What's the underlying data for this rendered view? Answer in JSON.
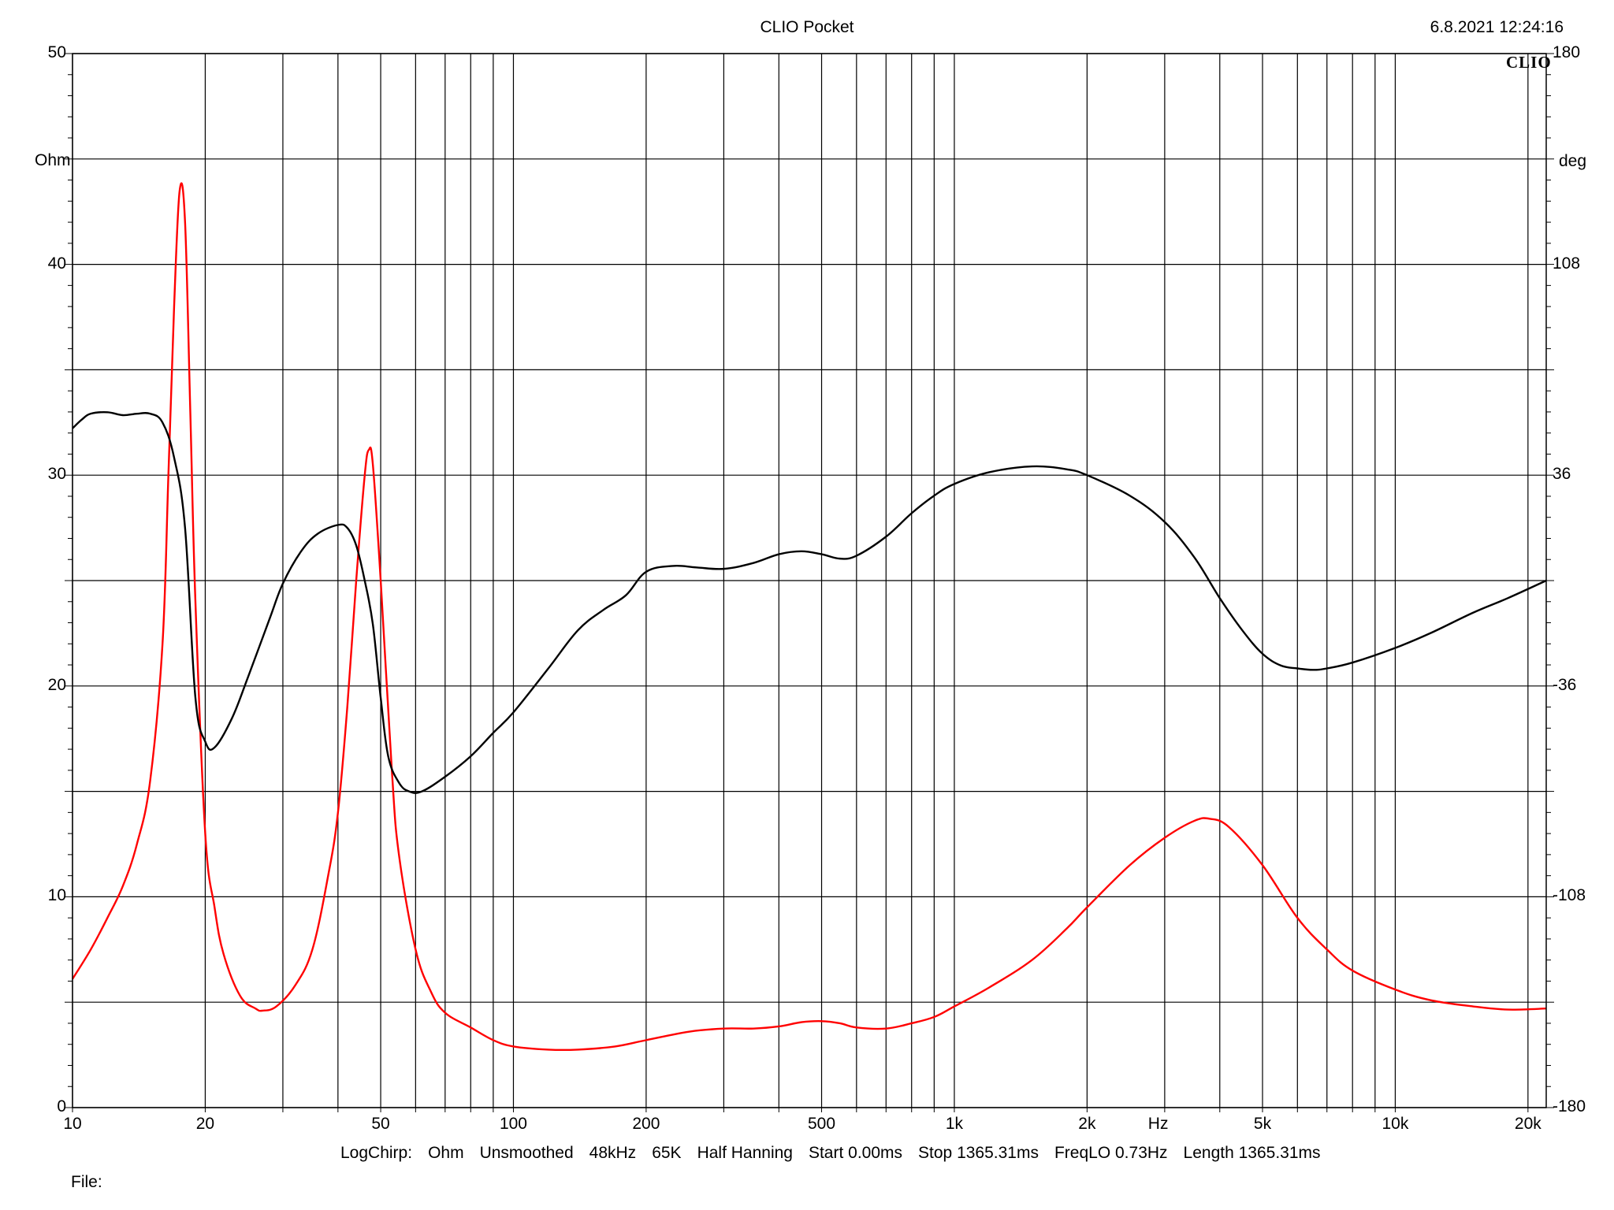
{
  "header": {
    "title": "CLIO Pocket",
    "datetime": "6.8.2021 12:24:16",
    "brand": "CLIO"
  },
  "info_line": {
    "items": [
      "LogChirp:",
      "Ohm",
      "Unsmoothed",
      "48kHz",
      "65K",
      "Half Hanning",
      "Start 0.00ms",
      "Stop 1365.31ms",
      "FreqLO 0.73Hz",
      "Length 1365.31ms"
    ]
  },
  "footer": {
    "file_label": "File:"
  },
  "chart_data": {
    "type": "line",
    "title": "CLIO Pocket",
    "x_scale": "log",
    "xlim": [
      10,
      22000
    ],
    "xlabel": "Hz",
    "x_tick_labels": [
      {
        "value": 10,
        "label": "10"
      },
      {
        "value": 20,
        "label": "20"
      },
      {
        "value": 50,
        "label": "50"
      },
      {
        "value": 100,
        "label": "100"
      },
      {
        "value": 200,
        "label": "200"
      },
      {
        "value": 500,
        "label": "500"
      },
      {
        "value": 1000,
        "label": "1k"
      },
      {
        "value": 2000,
        "label": "2k"
      },
      {
        "value": 5000,
        "label": "5k"
      },
      {
        "value": 10000,
        "label": "10k"
      },
      {
        "value": 20000,
        "label": "20k"
      }
    ],
    "x_gridlines": [
      10,
      20,
      30,
      40,
      50,
      60,
      70,
      80,
      90,
      100,
      200,
      300,
      400,
      500,
      600,
      700,
      800,
      900,
      1000,
      2000,
      3000,
      4000,
      5000,
      6000,
      7000,
      8000,
      9000,
      10000,
      20000
    ],
    "y_left": {
      "label": "Ohm",
      "ylim": [
        0,
        50
      ],
      "tick_labels": [
        "0",
        "10",
        "20",
        "30",
        "40",
        "50"
      ],
      "tick_values": [
        0,
        10,
        20,
        30,
        40,
        50
      ]
    },
    "y_right": {
      "label": "deg",
      "ylim": [
        -180,
        180
      ],
      "tick_labels": [
        "-180",
        "-108",
        "-36",
        "36",
        "108",
        "180"
      ],
      "tick_values": [
        -180,
        -108,
        -36,
        36,
        108,
        180
      ]
    },
    "y_gridlines": [
      0,
      5,
      10,
      15,
      20,
      25,
      30,
      35,
      40,
      45,
      50
    ],
    "grid": true,
    "series": [
      {
        "color": "#ff0000",
        "axis": "left",
        "points": [
          [
            10,
            6.1
          ],
          [
            11,
            7.5
          ],
          [
            12,
            9.0
          ],
          [
            13,
            10.5
          ],
          [
            14,
            12.5
          ],
          [
            15,
            15.5
          ],
          [
            16,
            22.0
          ],
          [
            16.5,
            30.0
          ],
          [
            17,
            38.0
          ],
          [
            17.5,
            43.5
          ],
          [
            18,
            42.0
          ],
          [
            18.5,
            33.0
          ],
          [
            19,
            24.0
          ],
          [
            20,
            13.0
          ],
          [
            21,
            9.5
          ],
          [
            22,
            7.3
          ],
          [
            24,
            5.3
          ],
          [
            26,
            4.7
          ],
          [
            27,
            4.6
          ],
          [
            29,
            4.8
          ],
          [
            32,
            5.8
          ],
          [
            35,
            7.5
          ],
          [
            38,
            11.0
          ],
          [
            40,
            14.0
          ],
          [
            42,
            19.0
          ],
          [
            44,
            25.0
          ],
          [
            46,
            30.0
          ],
          [
            47,
            31.2
          ],
          [
            48,
            30.5
          ],
          [
            50,
            25.0
          ],
          [
            53,
            16.0
          ],
          [
            55,
            12.0
          ],
          [
            60,
            7.5
          ],
          [
            65,
            5.5
          ],
          [
            70,
            4.5
          ],
          [
            80,
            3.8
          ],
          [
            90,
            3.2
          ],
          [
            100,
            2.9
          ],
          [
            120,
            2.75
          ],
          [
            140,
            2.75
          ],
          [
            170,
            2.9
          ],
          [
            200,
            3.2
          ],
          [
            250,
            3.6
          ],
          [
            300,
            3.75
          ],
          [
            350,
            3.75
          ],
          [
            400,
            3.85
          ],
          [
            450,
            4.05
          ],
          [
            500,
            4.1
          ],
          [
            550,
            4.0
          ],
          [
            600,
            3.8
          ],
          [
            700,
            3.75
          ],
          [
            800,
            4.0
          ],
          [
            900,
            4.3
          ],
          [
            1000,
            4.8
          ],
          [
            1200,
            5.7
          ],
          [
            1500,
            7.0
          ],
          [
            1800,
            8.5
          ],
          [
            2000,
            9.5
          ],
          [
            2500,
            11.5
          ],
          [
            3000,
            12.8
          ],
          [
            3500,
            13.6
          ],
          [
            3800,
            13.7
          ],
          [
            4200,
            13.3
          ],
          [
            5000,
            11.5
          ],
          [
            6000,
            9.0
          ],
          [
            7000,
            7.5
          ],
          [
            8000,
            6.5
          ],
          [
            10000,
            5.6
          ],
          [
            12000,
            5.1
          ],
          [
            15000,
            4.8
          ],
          [
            18000,
            4.65
          ],
          [
            22000,
            4.7
          ]
        ]
      },
      {
        "color": "#000000",
        "axis": "right",
        "points": [
          [
            10,
            52.0
          ],
          [
            10.5,
            55.0
          ],
          [
            11,
            57.0
          ],
          [
            12,
            57.5
          ],
          [
            13,
            56.5
          ],
          [
            14,
            57.0
          ],
          [
            15,
            57.0
          ],
          [
            16,
            54.0
          ],
          [
            17,
            42.0
          ],
          [
            18,
            18.0
          ],
          [
            19,
            -40.0
          ],
          [
            20,
            -55.0
          ],
          [
            21,
            -57.0
          ],
          [
            23,
            -47.0
          ],
          [
            25,
            -33.0
          ],
          [
            28,
            -13.0
          ],
          [
            30,
            -1.0
          ],
          [
            33,
            10.0
          ],
          [
            36,
            16.0
          ],
          [
            40,
            19.0
          ],
          [
            42,
            18.0
          ],
          [
            44,
            12.0
          ],
          [
            46,
            0.0
          ],
          [
            48,
            -15.0
          ],
          [
            50,
            -40.0
          ],
          [
            52,
            -60.0
          ],
          [
            55,
            -69.0
          ],
          [
            58,
            -72.0
          ],
          [
            62,
            -72.0
          ],
          [
            70,
            -67.0
          ],
          [
            80,
            -60.0
          ],
          [
            90,
            -52.0
          ],
          [
            100,
            -45.0
          ],
          [
            120,
            -30.0
          ],
          [
            140,
            -17.0
          ],
          [
            160,
            -10.0
          ],
          [
            180,
            -5.0
          ],
          [
            200,
            3.0
          ],
          [
            230,
            5.0
          ],
          [
            260,
            4.5
          ],
          [
            300,
            4.0
          ],
          [
            350,
            6.0
          ],
          [
            400,
            9.0
          ],
          [
            450,
            10.0
          ],
          [
            500,
            9.0
          ],
          [
            550,
            7.5
          ],
          [
            600,
            8.5
          ],
          [
            700,
            15.0
          ],
          [
            800,
            23.0
          ],
          [
            900,
            29.0
          ],
          [
            1000,
            33.0
          ],
          [
            1200,
            37.0
          ],
          [
            1500,
            39.0
          ],
          [
            1800,
            38.0
          ],
          [
            2000,
            36.0
          ],
          [
            2500,
            29.0
          ],
          [
            3000,
            20.0
          ],
          [
            3500,
            8.0
          ],
          [
            4000,
            -6.0
          ],
          [
            4500,
            -17.0
          ],
          [
            5000,
            -25.0
          ],
          [
            5500,
            -29.0
          ],
          [
            6000,
            -30.0
          ],
          [
            6500,
            -30.5
          ],
          [
            7000,
            -30.0
          ],
          [
            8000,
            -28.0
          ],
          [
            10000,
            -23.0
          ],
          [
            12000,
            -18.0
          ],
          [
            15000,
            -11.0
          ],
          [
            18000,
            -6.0
          ],
          [
            22000,
            0.0
          ]
        ]
      }
    ]
  }
}
